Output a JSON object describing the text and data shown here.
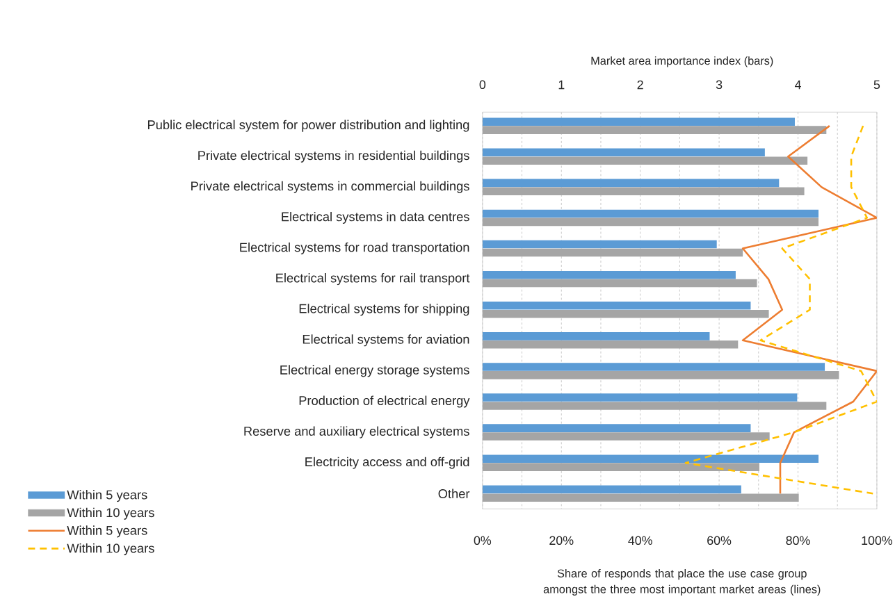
{
  "chart_data": {
    "type": "bar",
    "orientation": "horizontal",
    "categories": [
      "Public electrical system for power distribution and lighting",
      "Private electrical systems in residential buildings",
      "Private electrical systems in commercial buildings",
      "Electrical systems in data centres",
      "Electrical systems for road transportation",
      "Electrical systems for rail transport",
      "Electrical systems for shipping",
      "Electrical systems for aviation",
      "Electrical energy storage systems",
      "Production of electrical energy",
      "Reserve and auxiliary electrical systems",
      "Electricity access and off-grid",
      "Other"
    ],
    "series": [
      {
        "name": "Within 5 years",
        "axis": "x2",
        "color": "#5b9bd5",
        "values": [
          3.96,
          3.58,
          3.76,
          4.26,
          2.97,
          3.21,
          3.4,
          2.88,
          4.34,
          3.99,
          3.4,
          4.26,
          3.28
        ]
      },
      {
        "name": "Within 10 years",
        "axis": "x2",
        "color": "#a5a5a5",
        "values": [
          4.36,
          4.12,
          4.08,
          4.26,
          3.3,
          3.48,
          3.63,
          3.24,
          4.52,
          4.36,
          3.64,
          3.51,
          4.01
        ]
      },
      {
        "name": "Within 5 years",
        "type": "line",
        "color": "#ed7d31",
        "line_style": "solid",
        "values": [
          88,
          77.5,
          86,
          100,
          66,
          72.5,
          76,
          66,
          100,
          94,
          79,
          75.5,
          75.5
        ]
      },
      {
        "name": "Within 10 years",
        "type": "line",
        "color": "#ffc000",
        "line_style": "dashed",
        "values": [
          96.5,
          93.5,
          93.5,
          97.5,
          76,
          83,
          83,
          70.5,
          96,
          100,
          79,
          51.5,
          99
        ]
      }
    ],
    "xlim": [
      0,
      100
    ],
    "xticks": [
      {
        "value": 0,
        "label": "0%"
      },
      {
        "value": 20,
        "label": "20%"
      },
      {
        "value": 40,
        "label": "40%"
      },
      {
        "value": 60,
        "label": "60%"
      },
      {
        "value": 80,
        "label": "80%"
      },
      {
        "value": 100,
        "label": "100%"
      }
    ],
    "x2lim": [
      0,
      5
    ],
    "x2ticks": [
      0,
      1,
      2,
      3,
      4,
      5
    ],
    "xlabel": "Share of responds that place the use case group amongst the three most important market areas (lines)",
    "x2label": "Market area importance index (bars)",
    "grid": "x",
    "legend": "bottom left"
  }
}
